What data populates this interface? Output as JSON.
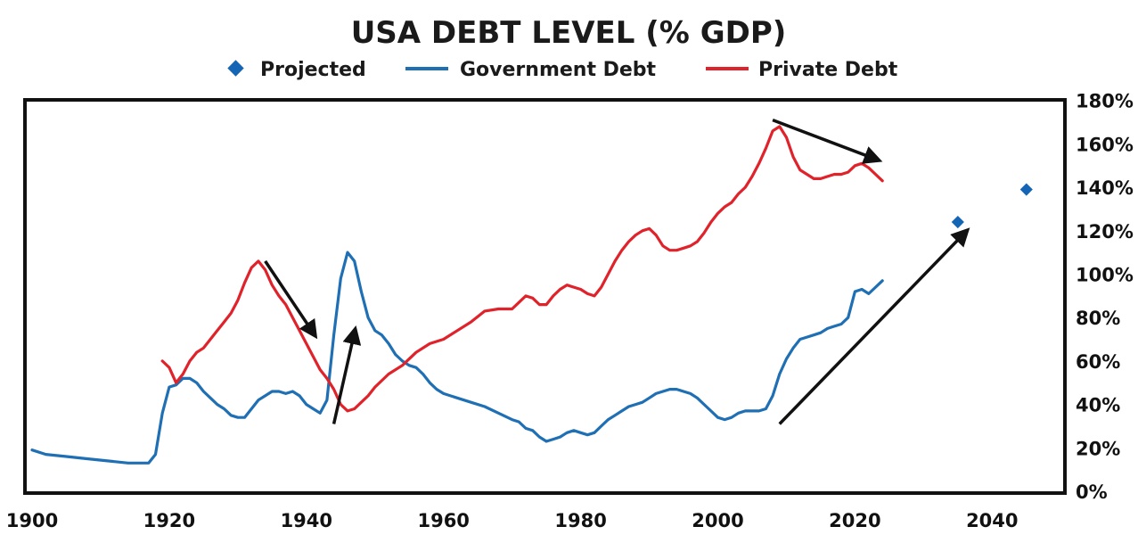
{
  "chart_data": {
    "type": "line",
    "title": "USA DEBT LEVEL (% GDP)",
    "xlabel": "",
    "ylabel": "",
    "xlim": [
      1900,
      2055
    ],
    "ylim": [
      0,
      180
    ],
    "x_ticks": [
      "1900",
      "1920",
      "1940",
      "1960",
      "1980",
      "2000",
      "2020",
      "2040"
    ],
    "y_ticks": [
      "0%",
      "20%",
      "40%",
      "60%",
      "80%",
      "100%",
      "120%",
      "140%",
      "160%",
      "180%"
    ],
    "legend_position": "top-center",
    "legend": [
      "Projected",
      "Government Debt",
      "Private Debt"
    ],
    "colors": {
      "government": "#1f6fb4",
      "private": "#e0232b",
      "projected": "#1565b5",
      "arrow": "#111111"
    },
    "series": [
      {
        "name": "Government Debt",
        "points": [
          [
            1900,
            19
          ],
          [
            1902,
            17
          ],
          [
            1905,
            16
          ],
          [
            1908,
            15
          ],
          [
            1911,
            14
          ],
          [
            1914,
            13
          ],
          [
            1916,
            13
          ],
          [
            1917,
            13
          ],
          [
            1918,
            17
          ],
          [
            1919,
            36
          ],
          [
            1920,
            48
          ],
          [
            1921,
            49
          ],
          [
            1922,
            52
          ],
          [
            1923,
            52
          ],
          [
            1924,
            50
          ],
          [
            1925,
            46
          ],
          [
            1926,
            43
          ],
          [
            1927,
            40
          ],
          [
            1928,
            38
          ],
          [
            1929,
            35
          ],
          [
            1930,
            34
          ],
          [
            1931,
            34
          ],
          [
            1932,
            38
          ],
          [
            1933,
            42
          ],
          [
            1934,
            44
          ],
          [
            1935,
            46
          ],
          [
            1936,
            46
          ],
          [
            1937,
            45
          ],
          [
            1938,
            46
          ],
          [
            1939,
            44
          ],
          [
            1940,
            40
          ],
          [
            1941,
            38
          ],
          [
            1942,
            36
          ],
          [
            1943,
            42
          ],
          [
            1944,
            72
          ],
          [
            1945,
            98
          ],
          [
            1946,
            110
          ],
          [
            1947,
            106
          ],
          [
            1948,
            92
          ],
          [
            1949,
            80
          ],
          [
            1950,
            74
          ],
          [
            1951,
            72
          ],
          [
            1952,
            68
          ],
          [
            1953,
            63
          ],
          [
            1954,
            60
          ],
          [
            1955,
            58
          ],
          [
            1956,
            57
          ],
          [
            1957,
            54
          ],
          [
            1958,
            50
          ],
          [
            1959,
            47
          ],
          [
            1960,
            45
          ],
          [
            1962,
            43
          ],
          [
            1964,
            41
          ],
          [
            1966,
            39
          ],
          [
            1968,
            36
          ],
          [
            1970,
            33
          ],
          [
            1971,
            32
          ],
          [
            1972,
            29
          ],
          [
            1973,
            28
          ],
          [
            1974,
            25
          ],
          [
            1975,
            23
          ],
          [
            1976,
            24
          ],
          [
            1977,
            25
          ],
          [
            1978,
            27
          ],
          [
            1979,
            28
          ],
          [
            1980,
            27
          ],
          [
            1981,
            26
          ],
          [
            1982,
            27
          ],
          [
            1983,
            30
          ],
          [
            1984,
            33
          ],
          [
            1985,
            35
          ],
          [
            1986,
            37
          ],
          [
            1987,
            39
          ],
          [
            1988,
            40
          ],
          [
            1989,
            41
          ],
          [
            1990,
            43
          ],
          [
            1991,
            45
          ],
          [
            1992,
            46
          ],
          [
            1993,
            47
          ],
          [
            1994,
            47
          ],
          [
            1995,
            46
          ],
          [
            1996,
            45
          ],
          [
            1997,
            43
          ],
          [
            1998,
            40
          ],
          [
            1999,
            37
          ],
          [
            2000,
            34
          ],
          [
            2001,
            33
          ],
          [
            2002,
            34
          ],
          [
            2003,
            36
          ],
          [
            2004,
            37
          ],
          [
            2005,
            37
          ],
          [
            2006,
            37
          ],
          [
            2007,
            38
          ],
          [
            2008,
            44
          ],
          [
            2009,
            54
          ],
          [
            2010,
            61
          ],
          [
            2011,
            66
          ],
          [
            2012,
            70
          ],
          [
            2013,
            71
          ],
          [
            2014,
            72
          ],
          [
            2015,
            73
          ],
          [
            2016,
            75
          ],
          [
            2017,
            76
          ],
          [
            2018,
            77
          ],
          [
            2019,
            80
          ],
          [
            2020,
            92
          ],
          [
            2021,
            93
          ],
          [
            2022,
            91
          ],
          [
            2023,
            94
          ],
          [
            2024,
            97
          ]
        ]
      },
      {
        "name": "Private Debt",
        "points": [
          [
            1919,
            60
          ],
          [
            1920,
            57
          ],
          [
            1921,
            50
          ],
          [
            1922,
            54
          ],
          [
            1923,
            60
          ],
          [
            1924,
            64
          ],
          [
            1925,
            66
          ],
          [
            1926,
            70
          ],
          [
            1927,
            74
          ],
          [
            1928,
            78
          ],
          [
            1929,
            82
          ],
          [
            1930,
            88
          ],
          [
            1931,
            96
          ],
          [
            1932,
            103
          ],
          [
            1933,
            106
          ],
          [
            1934,
            102
          ],
          [
            1935,
            95
          ],
          [
            1936,
            90
          ],
          [
            1937,
            86
          ],
          [
            1938,
            80
          ],
          [
            1939,
            74
          ],
          [
            1940,
            68
          ],
          [
            1941,
            62
          ],
          [
            1942,
            56
          ],
          [
            1943,
            52
          ],
          [
            1944,
            47
          ],
          [
            1945,
            40
          ],
          [
            1946,
            37
          ],
          [
            1947,
            38
          ],
          [
            1948,
            41
          ],
          [
            1949,
            44
          ],
          [
            1950,
            48
          ],
          [
            1952,
            54
          ],
          [
            1954,
            58
          ],
          [
            1956,
            64
          ],
          [
            1958,
            68
          ],
          [
            1960,
            70
          ],
          [
            1962,
            74
          ],
          [
            1964,
            78
          ],
          [
            1966,
            83
          ],
          [
            1968,
            84
          ],
          [
            1970,
            84
          ],
          [
            1971,
            87
          ],
          [
            1972,
            90
          ],
          [
            1973,
            89
          ],
          [
            1974,
            86
          ],
          [
            1975,
            86
          ],
          [
            1976,
            90
          ],
          [
            1977,
            93
          ],
          [
            1978,
            95
          ],
          [
            1979,
            94
          ],
          [
            1980,
            93
          ],
          [
            1981,
            91
          ],
          [
            1982,
            90
          ],
          [
            1983,
            94
          ],
          [
            1984,
            100
          ],
          [
            1985,
            106
          ],
          [
            1986,
            111
          ],
          [
            1987,
            115
          ],
          [
            1988,
            118
          ],
          [
            1989,
            120
          ],
          [
            1990,
            121
          ],
          [
            1991,
            118
          ],
          [
            1992,
            113
          ],
          [
            1993,
            111
          ],
          [
            1994,
            111
          ],
          [
            1995,
            112
          ],
          [
            1996,
            113
          ],
          [
            1997,
            115
          ],
          [
            1998,
            119
          ],
          [
            1999,
            124
          ],
          [
            2000,
            128
          ],
          [
            2001,
            131
          ],
          [
            2002,
            133
          ],
          [
            2003,
            137
          ],
          [
            2004,
            140
          ],
          [
            2005,
            145
          ],
          [
            2006,
            151
          ],
          [
            2007,
            158
          ],
          [
            2008,
            166
          ],
          [
            2009,
            168
          ],
          [
            2010,
            163
          ],
          [
            2011,
            154
          ],
          [
            2012,
            148
          ],
          [
            2013,
            146
          ],
          [
            2014,
            144
          ],
          [
            2015,
            144
          ],
          [
            2016,
            145
          ],
          [
            2017,
            146
          ],
          [
            2018,
            146
          ],
          [
            2019,
            147
          ],
          [
            2020,
            150
          ],
          [
            2021,
            151
          ],
          [
            2022,
            149
          ],
          [
            2023,
            146
          ],
          [
            2024,
            143
          ]
        ]
      }
    ],
    "projected": [
      [
        2035,
        124
      ],
      [
        2045,
        139
      ]
    ],
    "arrows": [
      {
        "from": [
          2008,
          171
        ],
        "to": [
          2023,
          153
        ]
      },
      {
        "from": [
          1934,
          106
        ],
        "to": [
          1941,
          73
        ]
      },
      {
        "from": [
          1944,
          31
        ],
        "to": [
          1947,
          73
        ]
      },
      {
        "from": [
          2009,
          31
        ],
        "to": [
          2036,
          119
        ]
      }
    ]
  }
}
